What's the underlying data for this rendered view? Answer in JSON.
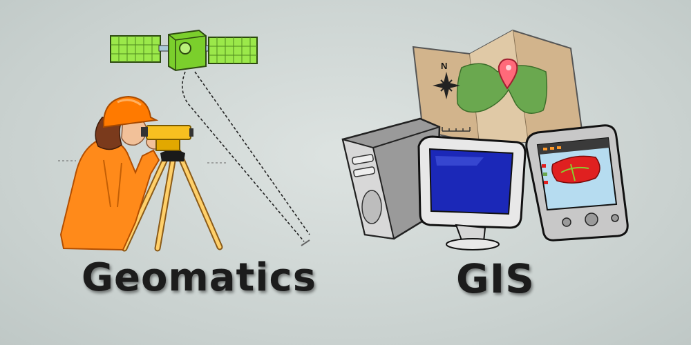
{
  "labels": {
    "geomatics": "Geomatics",
    "gis": "GIS"
  },
  "map": {
    "north_letter": "N"
  },
  "colors": {
    "background": "#c9d1cf",
    "satellite_panel": "#9be84a",
    "satellite_body": "#7bcf2c",
    "helmet": "#ff7a00",
    "jacket": "#ff8a1a",
    "map_land": "#6aa84f",
    "monitor_screen": "#1b28b8",
    "tablet_region": "#e02020",
    "caption_text": "#1c1c1c"
  }
}
